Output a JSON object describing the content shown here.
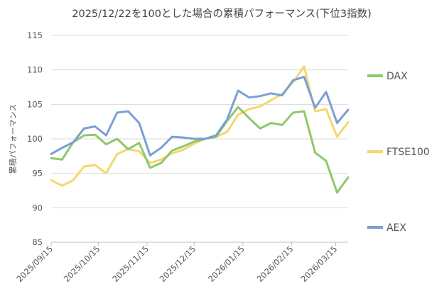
{
  "chart_data": {
    "type": "line",
    "title": "2025/12/22を100とした場合の累積パフォーマンス(下位3指数)",
    "ylabel": "累積パフォーマンス",
    "xlabel": "",
    "ylim": [
      85,
      115
    ],
    "yticks": [
      "85",
      "90",
      "95",
      "100",
      "105",
      "110",
      "115"
    ],
    "xticks": [
      "2025/09/15",
      "2025/10/15",
      "2025/11/15",
      "2025/12/15",
      "2026/01/15",
      "2026/02/15",
      "2026/03/15"
    ],
    "grid": true,
    "legend_position": "right",
    "x": [
      "2025/09/15",
      "2025/09/22",
      "2025/09/29",
      "2025/10/06",
      "2025/10/13",
      "2025/10/20",
      "2025/10/27",
      "2025/11/03",
      "2025/11/10",
      "2025/11/17",
      "2025/11/24",
      "2025/12/01",
      "2025/12/08",
      "2025/12/15",
      "2025/12/22",
      "2025/12/29",
      "2026/01/05",
      "2026/01/12",
      "2026/01/19",
      "2026/01/26",
      "2026/02/02",
      "2026/02/09",
      "2026/02/16",
      "2026/02/23",
      "2026/03/02",
      "2026/03/09",
      "2026/03/16",
      "2026/03/23"
    ],
    "series": [
      {
        "name": "DAX",
        "color": "#8fc96a",
        "values": [
          97.2,
          97.0,
          99.5,
          100.5,
          100.6,
          99.2,
          100.0,
          98.5,
          99.4,
          95.8,
          96.5,
          98.3,
          98.9,
          99.6,
          100.0,
          100.3,
          102.6,
          104.6,
          103.0,
          101.5,
          102.3,
          102.0,
          103.8,
          104.0,
          98.0,
          96.8,
          92.2,
          94.4
        ]
      },
      {
        "name": "FTSE100",
        "color": "#f5d76e",
        "values": [
          94.0,
          93.2,
          94.0,
          96.0,
          96.2,
          95.0,
          97.8,
          98.5,
          98.2,
          96.5,
          97.0,
          97.9,
          98.4,
          99.3,
          100.0,
          100.3,
          101.0,
          103.5,
          104.3,
          104.7,
          105.6,
          106.5,
          108.2,
          110.5,
          104.0,
          104.3,
          100.3,
          102.4
        ]
      },
      {
        "name": "AEX",
        "color": "#7b9fd4",
        "values": [
          97.8,
          98.7,
          99.5,
          101.5,
          101.8,
          100.5,
          103.8,
          104.0,
          102.3,
          97.6,
          98.7,
          100.3,
          100.2,
          100.0,
          100.0,
          100.5,
          102.8,
          107.0,
          106.0,
          106.2,
          106.6,
          106.3,
          108.5,
          109.0,
          104.5,
          106.8,
          102.3,
          104.2
        ]
      }
    ]
  }
}
